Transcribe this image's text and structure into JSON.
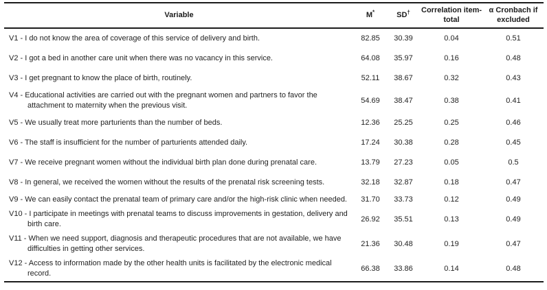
{
  "table": {
    "headers": {
      "variable": "Variable",
      "mean_base": "M",
      "mean_sup": "*",
      "sd_base": "SD",
      "sd_sup": "†",
      "correlation": "Correlation item-total",
      "cronbach": "α Cronbach if excluded"
    },
    "rows": [
      {
        "variable": "V1 - I do not know the area of coverage of this service of delivery and birth.",
        "m": "82.85",
        "sd": "30.39",
        "correlation": "0.04",
        "cronbach": "0.51"
      },
      {
        "variable": "V2 - I got a bed in another care unit when there was no vacancy in this service.",
        "m": "64.08",
        "sd": "35.97",
        "correlation": "0.16",
        "cronbach": "0.48"
      },
      {
        "variable": "V3 - I get pregnant to know the place of birth, routinely.",
        "m": "52.11",
        "sd": "38.67",
        "correlation": "0.32",
        "cronbach": "0.43"
      },
      {
        "variable": "V4 - Educational activities are carried out with the pregnant women and partners to favor the attachment to maternity when the previous visit.",
        "m": "54.69",
        "sd": "38.47",
        "correlation": "0.38",
        "cronbach": "0.41"
      },
      {
        "variable": "V5 - We usually treat more parturients than the number of beds.",
        "m": "12.36",
        "sd": "25.25",
        "correlation": "0.25",
        "cronbach": "0.46"
      },
      {
        "variable": "V6 - The staff is insufficient for the number of parturients attended daily.",
        "m": "17.24",
        "sd": "30.38",
        "correlation": "0.28",
        "cronbach": "0.45"
      },
      {
        "variable": "V7 - We receive pregnant women without the individual birth plan done during prenatal care.",
        "m": "13.79",
        "sd": "27.23",
        "correlation": "0.05",
        "cronbach": "0.5"
      },
      {
        "variable": "V8 - In general, we received the women without the results of the prenatal risk screening tests.",
        "m": "32.18",
        "sd": "32.87",
        "correlation": "0.18",
        "cronbach": "0.47"
      },
      {
        "variable": "V9 - We can easily contact the prenatal team of primary care and/or the high-risk clinic when needed.",
        "m": "31.70",
        "sd": "33.73",
        "correlation": "0.12",
        "cronbach": "0.49"
      },
      {
        "variable": "V10 - I participate in meetings with prenatal teams to discuss improvements in gestation, delivery and birth care.",
        "m": "26.92",
        "sd": "35.51",
        "correlation": "0.13",
        "cronbach": "0.49"
      },
      {
        "variable": "V11 - When we need support, diagnosis and therapeutic procedures that are not available, we have difficulties in getting other services.",
        "m": "21.36",
        "sd": "30.48",
        "correlation": "0.19",
        "cronbach": "0.47"
      },
      {
        "variable": "V12 - Access to information made by the other health units is facilitated by the electronic medical record.",
        "m": "66.38",
        "sd": "33.86",
        "correlation": "0.14",
        "cronbach": "0.48"
      }
    ]
  }
}
